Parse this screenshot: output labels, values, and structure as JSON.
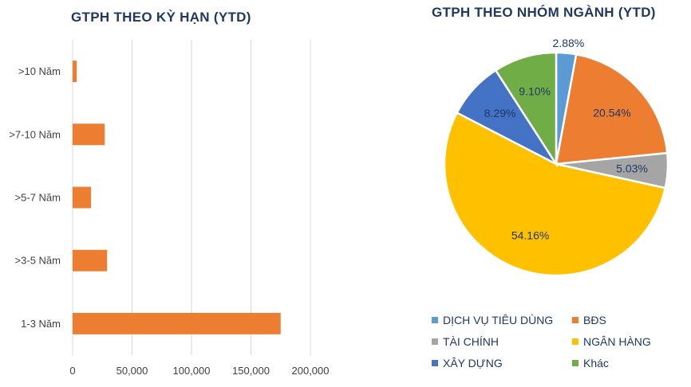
{
  "chart_data": [
    {
      "type": "bar",
      "orientation": "horizontal",
      "title": "GTPH THEO KỲ HẠN (YTD)",
      "categories": [
        ">10 Năm",
        ">7-10 Năm",
        ">5-7 Năm",
        ">3-5 Năm",
        "1-3 Năm"
      ],
      "values": [
        3500,
        27000,
        15500,
        29000,
        175000
      ],
      "xlim": [
        0,
        200000
      ],
      "xticks": [
        "0",
        "50,000",
        "100,000",
        "150,000",
        "200,000"
      ],
      "grid": "vertical",
      "color": "#ed7d31"
    },
    {
      "type": "pie",
      "title": "GTPH THEO NHÓM NGÀNH (YTD)",
      "slices": [
        {
          "label": "DỊCH VỤ TIÊU DÙNG",
          "value": 2.88,
          "text": "2.88%",
          "color": "#5b9bd5"
        },
        {
          "label": "BĐS",
          "value": 20.54,
          "text": "20.54%",
          "color": "#ed7d31"
        },
        {
          "label": "TÀI CHÍNH",
          "value": 5.03,
          "text": "5.03%",
          "color": "#a5a5a5"
        },
        {
          "label": "NGÂN HÀNG",
          "value": 54.16,
          "text": "54.16%",
          "color": "#ffc000"
        },
        {
          "label": "XÂY DỰNG",
          "value": 8.29,
          "text": "8.29%",
          "color": "#4472c4"
        },
        {
          "label": "Khác",
          "value": 9.1,
          "text": "9.10%",
          "color": "#70ad47"
        }
      ],
      "legend_position": "bottom"
    }
  ]
}
